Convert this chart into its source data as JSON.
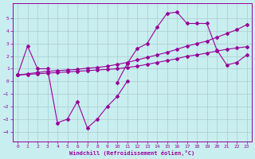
{
  "bg_color": "#c8eef0",
  "line_color": "#990099",
  "grid_color": "#aacccc",
  "xlabel": "Windchill (Refroidissement éolien,°C)",
  "xlim": [
    -0.5,
    23.5
  ],
  "ylim": [
    -4.8,
    6.2
  ],
  "yticks": [
    -4,
    -3,
    -2,
    -1,
    0,
    1,
    2,
    3,
    4,
    5
  ],
  "xticks": [
    0,
    1,
    2,
    3,
    4,
    5,
    6,
    7,
    8,
    9,
    10,
    11,
    12,
    13,
    14,
    15,
    16,
    17,
    18,
    19,
    20,
    21,
    22,
    23
  ],
  "series": [
    {
      "x": [
        0,
        1,
        2,
        3,
        4,
        5,
        6,
        7,
        8,
        9,
        10,
        11
      ],
      "y": [
        0.5,
        2.8,
        1.0,
        1.0,
        -3.3,
        -3.0,
        -1.6,
        -3.7,
        -3.0,
        -2.0,
        -1.2,
        0.0
      ]
    },
    {
      "x": [
        10,
        11,
        12,
        13,
        14,
        15,
        16,
        17,
        18,
        19,
        20,
        21,
        22,
        23
      ],
      "y": [
        -0.1,
        1.4,
        2.6,
        3.0,
        4.3,
        5.4,
        5.5,
        4.6,
        4.6,
        4.6,
        2.5,
        1.3,
        1.5,
        2.1
      ]
    },
    {
      "x": [
        0,
        1,
        2,
        3,
        4,
        5,
        6,
        7,
        8,
        9,
        10,
        11,
        12,
        13,
        14,
        15,
        16,
        17,
        18,
        19,
        20,
        21,
        22,
        23
      ],
      "y": [
        0.5,
        0.55,
        0.6,
        0.65,
        0.7,
        0.75,
        0.8,
        0.85,
        0.9,
        0.95,
        1.0,
        1.1,
        1.2,
        1.35,
        1.5,
        1.65,
        1.8,
        2.0,
        2.1,
        2.25,
        2.4,
        2.55,
        2.65,
        2.75
      ]
    },
    {
      "x": [
        0,
        1,
        2,
        3,
        4,
        5,
        6,
        7,
        8,
        9,
        10,
        11,
        12,
        13,
        14,
        15,
        16,
        17,
        18,
        19,
        20,
        21,
        22,
        23
      ],
      "y": [
        0.5,
        0.6,
        0.7,
        0.8,
        0.85,
        0.9,
        0.95,
        1.05,
        1.1,
        1.2,
        1.35,
        1.5,
        1.7,
        1.9,
        2.1,
        2.3,
        2.55,
        2.8,
        3.0,
        3.2,
        3.5,
        3.8,
        4.1,
        4.5
      ]
    }
  ]
}
